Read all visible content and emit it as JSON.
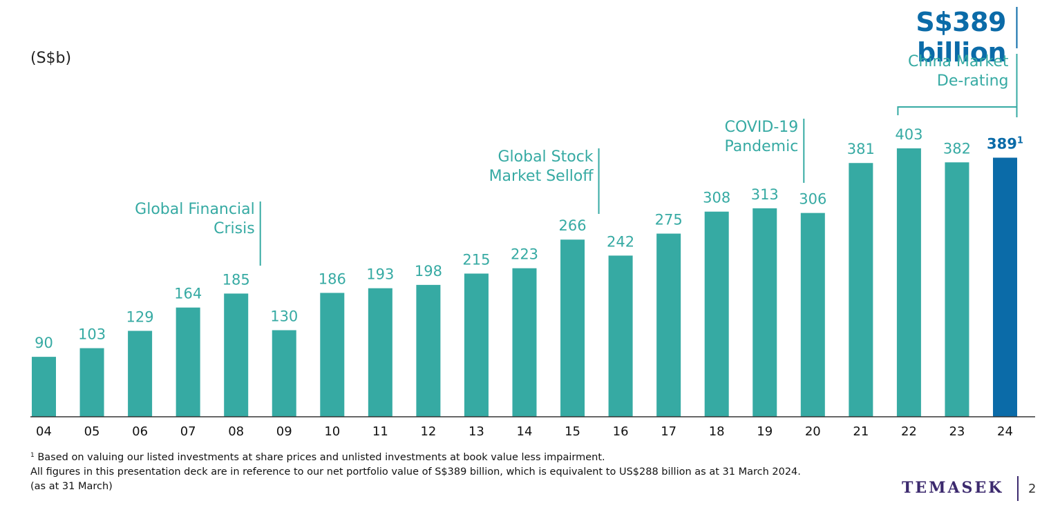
{
  "headline": "S$389 billion",
  "unit_label": "(S$b)",
  "colors": {
    "bar": "#36aaa3",
    "highlight": "#0b6ba8",
    "annotation": "#36aaa3",
    "label": "#36aaa3",
    "axis": "#333333"
  },
  "chart_data": {
    "type": "bar",
    "categories": [
      "04",
      "05",
      "06",
      "07",
      "08",
      "09",
      "10",
      "11",
      "12",
      "13",
      "14",
      "15",
      "16",
      "17",
      "18",
      "19",
      "20",
      "21",
      "22",
      "23",
      "24"
    ],
    "values": [
      90,
      103,
      129,
      164,
      185,
      130,
      186,
      193,
      198,
      215,
      223,
      266,
      242,
      275,
      308,
      313,
      306,
      381,
      403,
      382,
      389
    ],
    "data_labels": [
      "90",
      "103",
      "129",
      "164",
      "185",
      "130",
      "186",
      "193",
      "198",
      "215",
      "223",
      "266",
      "242",
      "275",
      "308",
      "313",
      "306",
      "381",
      "403",
      "382",
      "389"
    ],
    "highlight_index": 20,
    "highlight_superscript": "1",
    "ylabel": "(S$b)",
    "ylim": [
      0,
      403
    ],
    "grid": false,
    "annotations": [
      {
        "lines": [
          "Global Financial",
          "Crisis"
        ],
        "category": "08"
      },
      {
        "lines": [
          "Global Stock",
          "Market Selloff"
        ],
        "category": "15"
      },
      {
        "lines": [
          "COVID-19",
          "Pandemic"
        ],
        "category": "20"
      },
      {
        "lines": [
          "China Market",
          "De-rating"
        ],
        "category_range": [
          "22",
          "24"
        ]
      }
    ]
  },
  "footnote": {
    "marker": "1",
    "line1": "Based on valuing our listed investments at share prices and unlisted investments at book value less impairment.",
    "line2": "All figures in this presentation deck are in reference to our net portfolio value of S$389 billion, which is equivalent to US$288 billion as at 31 March 2024."
  },
  "as_at": "(as at 31 March)",
  "logo_text": "TEMASEK",
  "page_number": "2"
}
